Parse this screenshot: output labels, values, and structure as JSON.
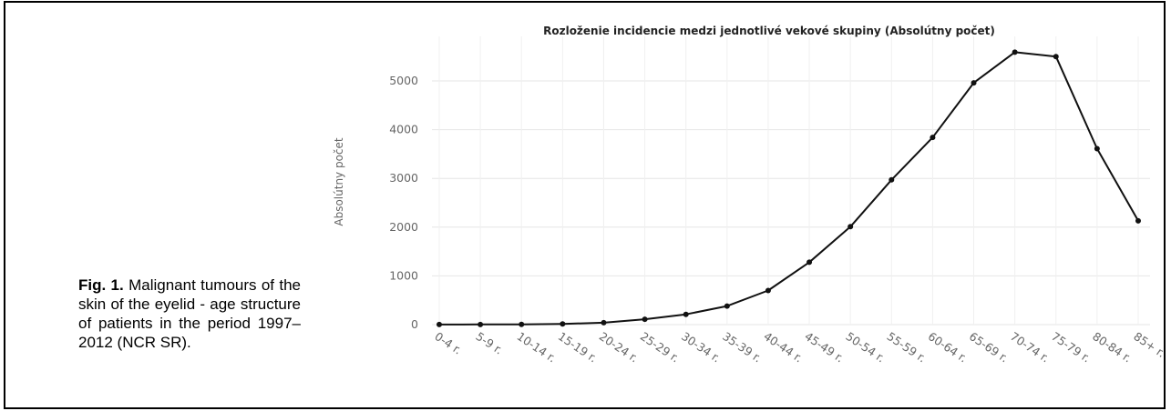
{
  "caption": {
    "label": "Fig. 1.",
    "text": "Malignant tumours of the skin of the eyelid - age structure of patients in the period 1997–2012 (NCR SR)."
  },
  "chart_data": {
    "type": "line",
    "title": "Rozloženie incidencie medzi jednotlivé vekové skupiny (Absolútny počet)",
    "xlabel": "",
    "ylabel": "Absolútny počet",
    "categories": [
      "0-4 r.",
      "5-9 r.",
      "10-14 r.",
      "15-19 r.",
      "20-24 r.",
      "25-29 r.",
      "30-34 r.",
      "35-39 r.",
      "40-44 r.",
      "45-49 r.",
      "50-54 r.",
      "55-59 r.",
      "60-64 r.",
      "65-69 r.",
      "70-74 r.",
      "75-79 r.",
      "80-84 r.",
      "85+ r."
    ],
    "series": [
      {
        "values": [
          2,
          3,
          5,
          15,
          40,
          110,
          210,
          380,
          700,
          1280,
          2010,
          2970,
          3840,
          4960,
          5590,
          5500,
          3610,
          2130
        ]
      }
    ],
    "yticks": [
      0,
      1000,
      2000,
      3000,
      4000,
      5000
    ],
    "ytick_labels": [
      "0",
      "1000",
      "2000",
      "3000",
      "4000",
      "5000"
    ],
    "ylim": [
      0,
      5800
    ],
    "grid": true,
    "legend": "none",
    "colors": {
      "line": "#111111",
      "grid": "#e6e6e6",
      "text": "#666666"
    }
  }
}
